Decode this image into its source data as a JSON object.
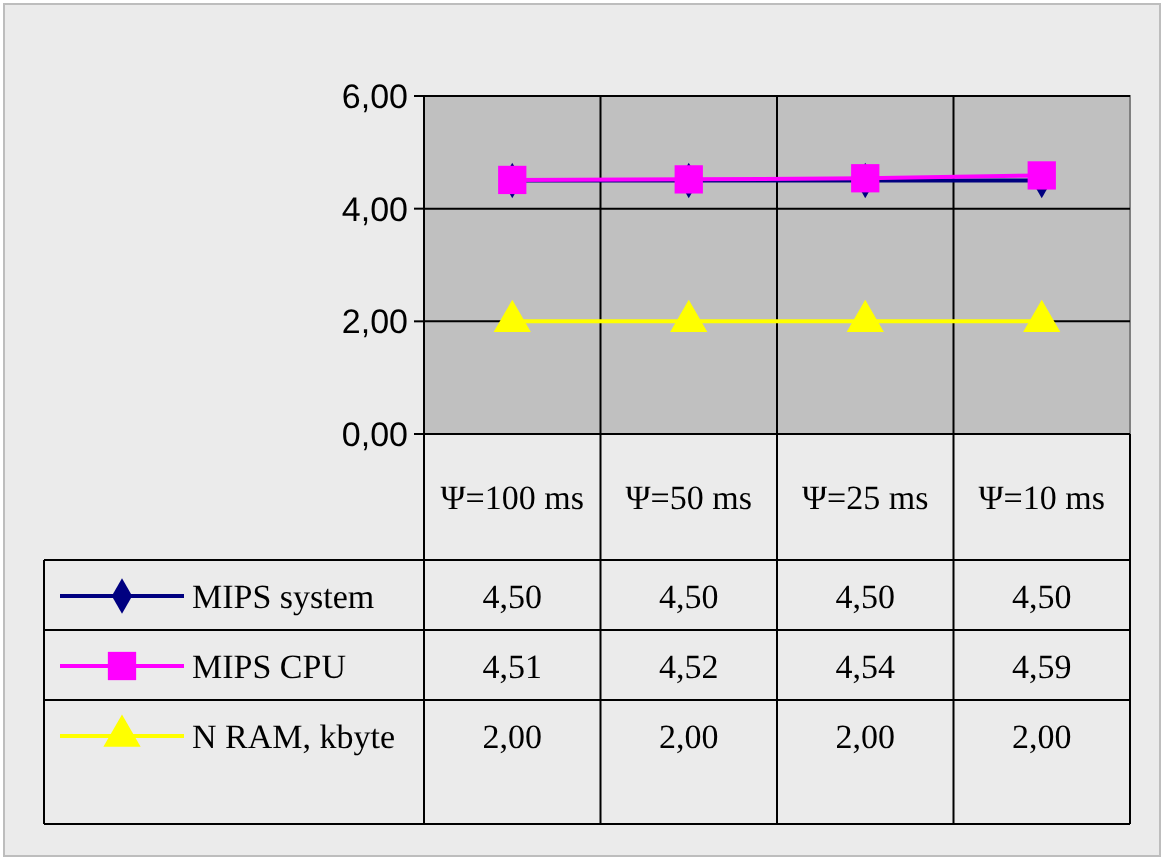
{
  "chart_data": {
    "type": "line",
    "categories": [
      "Ψ=100 ms",
      "Ψ=50 ms",
      "Ψ=25 ms",
      "Ψ=10 ms"
    ],
    "series": [
      {
        "name": "MIPS system",
        "color": "#000080",
        "marker": "diamond",
        "values": [
          4.5,
          4.5,
          4.5,
          4.5
        ],
        "value_labels": [
          "4,50",
          "4,50",
          "4,50",
          "4,50"
        ]
      },
      {
        "name": "MIPS CPU",
        "color": "#ff00ff",
        "marker": "square",
        "values": [
          4.51,
          4.52,
          4.54,
          4.59
        ],
        "value_labels": [
          "4,51",
          "4,52",
          "4,54",
          "4,59"
        ]
      },
      {
        "name": "N RAM, kbyte",
        "color": "#ffff00",
        "marker": "triangle",
        "values": [
          2,
          2,
          2,
          2
        ],
        "value_labels": [
          "2,00",
          "2,00",
          "2,00",
          "2,00"
        ]
      }
    ],
    "ylim": [
      0,
      6
    ],
    "yticks": [
      {
        "value": 0,
        "label": "0,00"
      },
      {
        "value": 2,
        "label": "2,00"
      },
      {
        "value": 4,
        "label": "4,00"
      },
      {
        "value": 6,
        "label": "6,00"
      }
    ],
    "grid": true,
    "legend": "bottom",
    "line_style": "solid"
  }
}
